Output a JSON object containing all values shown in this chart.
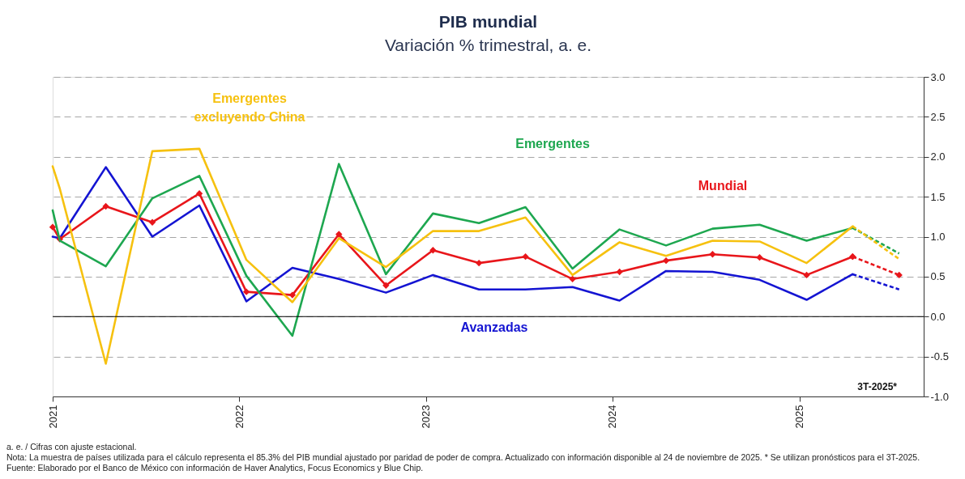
{
  "chart_data": {
    "type": "line",
    "title": "PIB mundial",
    "subtitle": "Variación % trimestral, a. e.",
    "x": [
      "2021-01-01",
      "2021-01-15",
      "2021-04-15",
      "2021-07-15",
      "2021-10-15",
      "2022-01-15",
      "2022-04-15",
      "2022-07-15",
      "2022-10-15",
      "2023-01-15",
      "2023-04-15",
      "2023-07-15",
      "2023-10-15",
      "2024-01-15",
      "2024-04-15",
      "2024-07-15",
      "2024-10-15",
      "2025-01-15",
      "2025-04-15"
    ],
    "series": [
      {
        "name": "Avanzadas",
        "color": "#1414d2",
        "values": [
          1.0,
          0.98,
          1.87,
          1.0,
          1.39,
          0.19,
          0.61,
          0.47,
          0.3,
          0.52,
          0.34,
          0.34,
          0.37,
          0.2,
          0.57,
          0.56,
          0.46,
          0.21,
          0.53
        ],
        "line_style": "solid",
        "marker": "none"
      },
      {
        "name": "Mundial",
        "color": "#e8161b",
        "values": [
          1.12,
          0.97,
          1.38,
          1.18,
          1.54,
          0.31,
          0.27,
          1.03,
          0.39,
          0.83,
          0.67,
          0.75,
          0.47,
          0.56,
          0.7,
          0.78,
          0.74,
          0.52,
          0.75
        ],
        "line_style": "solid",
        "marker": "diamond"
      },
      {
        "name": "Emergentes",
        "color": "#1ea750",
        "values": [
          1.33,
          0.95,
          0.63,
          1.48,
          1.76,
          0.51,
          -0.24,
          1.91,
          0.53,
          1.29,
          1.17,
          1.37,
          0.6,
          1.09,
          0.89,
          1.1,
          1.15,
          0.95,
          1.11
        ],
        "line_style": "solid",
        "marker": "none"
      },
      {
        "name": "Emergentes excluyendo China",
        "color": "#f6c10f",
        "values": [
          1.88,
          1.6,
          -0.59,
          2.07,
          2.1,
          0.71,
          0.18,
          0.98,
          0.62,
          1.07,
          1.07,
          1.24,
          0.52,
          0.93,
          0.76,
          0.95,
          0.94,
          0.67,
          1.13
        ],
        "line_style": "solid",
        "marker": "none"
      },
      {
        "color": "#1414d2",
        "x": [
          "2025-04-15",
          "2025-07-15"
        ],
        "values": [
          0.53,
          0.34
        ],
        "line_style": "dashed",
        "marker": "none"
      },
      {
        "color": "#e8161b",
        "x": [
          "2025-04-15",
          "2025-07-15"
        ],
        "values": [
          0.75,
          0.52
        ],
        "line_style": "dashed",
        "marker": "diamond"
      },
      {
        "color": "#1ea750",
        "x": [
          "2025-04-15",
          "2025-07-15"
        ],
        "values": [
          1.11,
          0.79
        ],
        "line_style": "dashed",
        "marker": "none"
      },
      {
        "color": "#f6c10f",
        "x": [
          "2025-04-15",
          "2025-07-15"
        ],
        "values": [
          1.13,
          0.72
        ],
        "line_style": "dashed",
        "marker": "none"
      }
    ],
    "xlim": [
      "2021-01-01",
      "2025-09-01"
    ],
    "xticks": [
      {
        "value": "2021-01-01",
        "label": "2021"
      },
      {
        "value": "2022-01-01",
        "label": "2022"
      },
      {
        "value": "2023-01-01",
        "label": "2023"
      },
      {
        "value": "2024-01-01",
        "label": "2024"
      },
      {
        "value": "2025-01-01",
        "label": "2025"
      }
    ],
    "ylim": [
      -1.0,
      3.0
    ],
    "yticks": [
      {
        "value": -1,
        "label": "-1.0"
      },
      {
        "value": -0.5,
        "label": "-0.5"
      },
      {
        "value": 0,
        "label": "0.0"
      },
      {
        "value": 0.5,
        "label": "0.5"
      },
      {
        "value": 1,
        "label": "1.0"
      },
      {
        "value": 1.5,
        "label": "1.5"
      },
      {
        "value": 2,
        "label": "2.0"
      },
      {
        "value": 2.5,
        "label": "2.5"
      },
      {
        "value": 3,
        "label": "3.0"
      }
    ],
    "grid": "y",
    "ref_lines": [
      {
        "axis": "y",
        "value": 0,
        "color": "#000000",
        "line_style": "solid"
      }
    ],
    "annotations": [
      "3T-2025*",
      "a. e. / Cifras con ajuste estacional.",
      "Nota: La muestra de países utilizada para el cálculo representa el 85.3% del PIB mundial ajustado por paridad de poder de compra. Actualizado con información disponible al 24 de noviembre de 2025. * Se utilizan pronósticos para el 3T-2025.",
      "Fuente: Elaborado por el Banco de México con información de Haver Analytics, Focus Economics y Blue Chip."
    ]
  }
}
